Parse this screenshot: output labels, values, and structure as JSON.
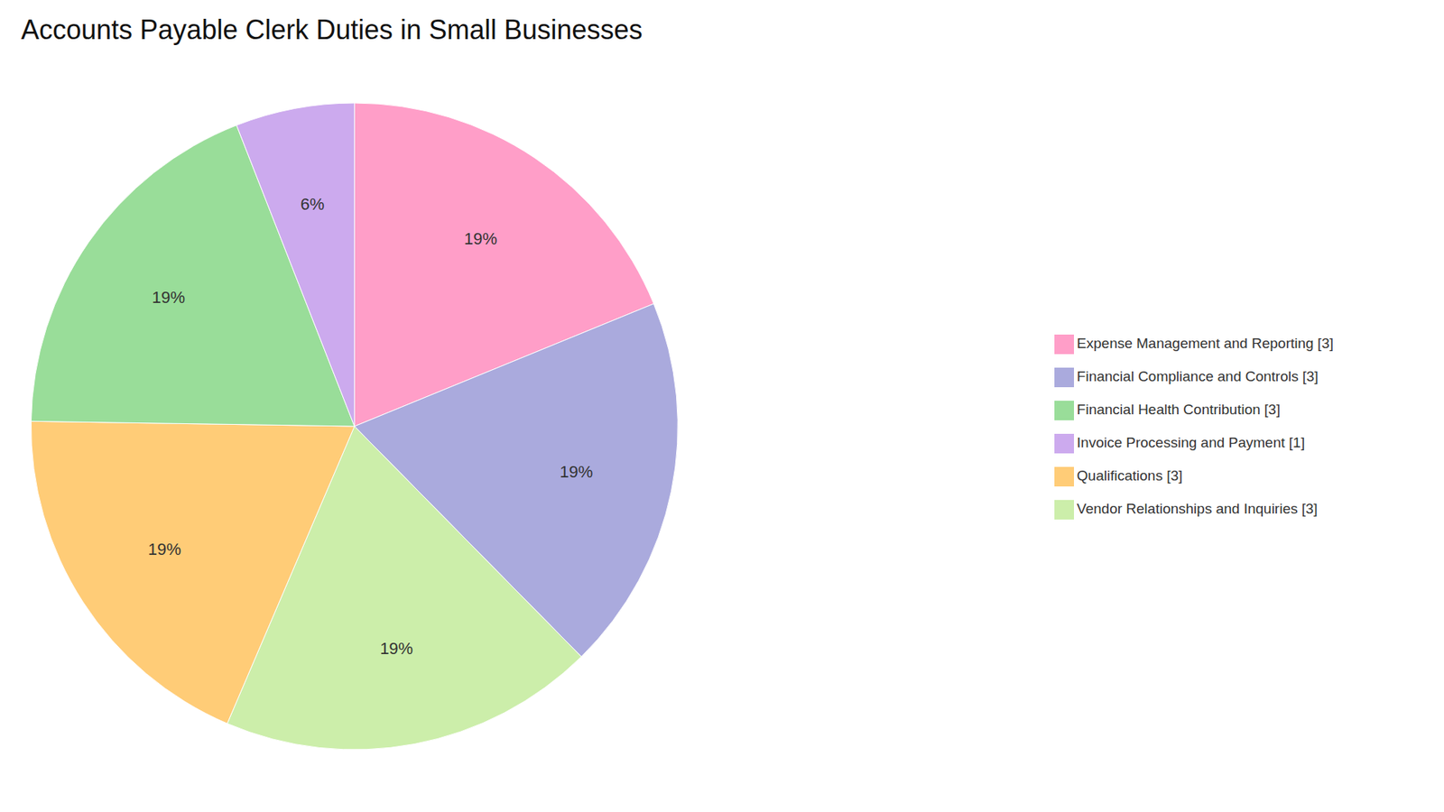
{
  "chart_data": {
    "type": "pie",
    "title": "Accounts Payable Clerk Duties in Small Businesses",
    "categories": [
      "Expense Management and Reporting [3]",
      "Financial Compliance and Controls [3]",
      "Vendor Relationships and Inquiries [3]",
      "Qualifications [3]",
      "Financial Health Contribution [3]",
      "Invoice Processing and Payment [1]"
    ],
    "values": [
      19,
      19,
      19,
      19,
      19,
      6
    ],
    "value_labels": [
      "19%",
      "19%",
      "19%",
      "19%",
      "19%",
      "6%"
    ],
    "colors": [
      "#FF9EC8",
      "#AAAADD",
      "#CCEEAA",
      "#FFCC77",
      "#99DD99",
      "#CCAAEE"
    ],
    "data_labels": true,
    "legend": "right"
  }
}
